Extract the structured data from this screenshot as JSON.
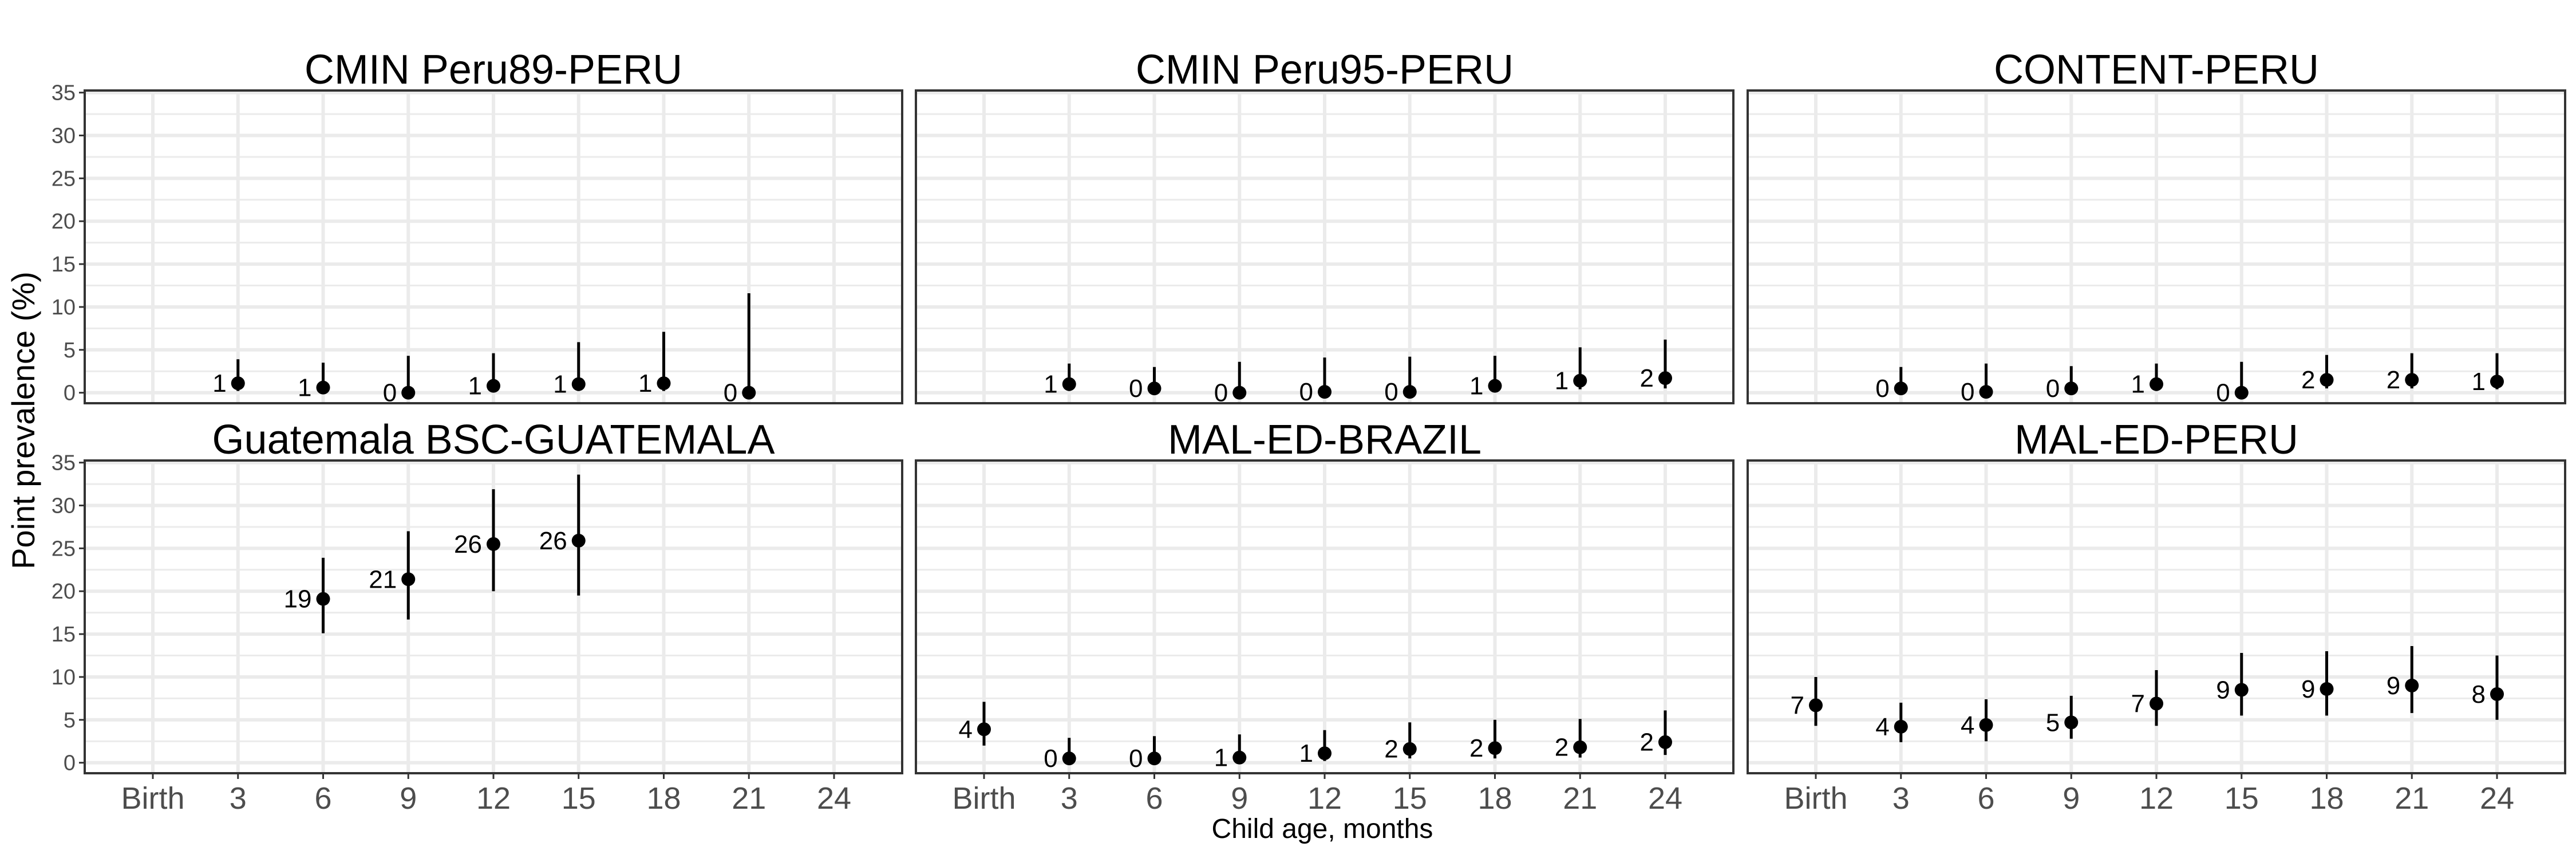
{
  "figure": {
    "ylabel": "Point prevalence (%)",
    "xlabel": "Child age, months"
  },
  "chart_data": {
    "type": "scatter",
    "facet_layout": "3 columns x 2 rows",
    "xlabel": "Child age, months",
    "ylabel": "Point prevalence (%)",
    "x_categories": [
      "Birth",
      "3",
      "6",
      "9",
      "12",
      "15",
      "18",
      "21",
      "24"
    ],
    "yticks": [
      0,
      5,
      10,
      15,
      20,
      25,
      30,
      35
    ],
    "ylim": [
      0,
      35
    ],
    "grid": true,
    "colors": {
      "point": "#000000",
      "panel_border": "#333333",
      "grid": "#ebebeb"
    },
    "panels": [
      {
        "title": "CMIN Peru89-PERU",
        "points": [
          {
            "x": "3",
            "y": 1.1,
            "lo": 0.2,
            "hi": 3.9,
            "label": "1"
          },
          {
            "x": "6",
            "y": 0.6,
            "lo": 0.0,
            "hi": 3.5,
            "label": "1"
          },
          {
            "x": "9",
            "y": 0.0,
            "lo": 0.0,
            "hi": 4.3,
            "label": "0"
          },
          {
            "x": "12",
            "y": 0.8,
            "lo": 0.1,
            "hi": 4.6,
            "label": "1"
          },
          {
            "x": "15",
            "y": 1.0,
            "lo": 0.2,
            "hi": 5.9,
            "label": "1"
          },
          {
            "x": "18",
            "y": 1.1,
            "lo": 0.2,
            "hi": 7.1,
            "label": "1"
          },
          {
            "x": "21",
            "y": 0.0,
            "lo": 0.0,
            "hi": 11.6,
            "label": "0"
          }
        ]
      },
      {
        "title": "CMIN Peru95-PERU",
        "points": [
          {
            "x": "3",
            "y": 1.0,
            "lo": 0.2,
            "hi": 3.4,
            "label": "1"
          },
          {
            "x": "6",
            "y": 0.5,
            "lo": 0.0,
            "hi": 3.0,
            "label": "0"
          },
          {
            "x": "9",
            "y": 0.0,
            "lo": 0.0,
            "hi": 3.6,
            "label": "0"
          },
          {
            "x": "12",
            "y": 0.1,
            "lo": 0.0,
            "hi": 4.1,
            "label": "0"
          },
          {
            "x": "15",
            "y": 0.1,
            "lo": 0.0,
            "hi": 4.2,
            "label": "0"
          },
          {
            "x": "18",
            "y": 0.8,
            "lo": 0.1,
            "hi": 4.3,
            "label": "1"
          },
          {
            "x": "21",
            "y": 1.4,
            "lo": 0.4,
            "hi": 5.3,
            "label": "1"
          },
          {
            "x": "24",
            "y": 1.7,
            "lo": 0.5,
            "hi": 6.2,
            "label": "2"
          }
        ]
      },
      {
        "title": "CONTENT-PERU",
        "points": [
          {
            "x": "3",
            "y": 0.5,
            "lo": 0.0,
            "hi": 3.0,
            "label": "0"
          },
          {
            "x": "6",
            "y": 0.1,
            "lo": 0.0,
            "hi": 3.4,
            "label": "0"
          },
          {
            "x": "9",
            "y": 0.5,
            "lo": 0.0,
            "hi": 3.1,
            "label": "0"
          },
          {
            "x": "12",
            "y": 1.0,
            "lo": 0.2,
            "hi": 3.4,
            "label": "1"
          },
          {
            "x": "15",
            "y": 0.0,
            "lo": 0.0,
            "hi": 3.6,
            "label": "0"
          },
          {
            "x": "18",
            "y": 1.5,
            "lo": 0.5,
            "hi": 4.4,
            "label": "2"
          },
          {
            "x": "21",
            "y": 1.5,
            "lo": 0.5,
            "hi": 4.6,
            "label": "2"
          },
          {
            "x": "24",
            "y": 1.3,
            "lo": 0.4,
            "hi": 4.6,
            "label": "1"
          }
        ]
      },
      {
        "title": "Guatemala BSC-GUATEMALA",
        "points": [
          {
            "x": "6",
            "y": 19.1,
            "lo": 15.1,
            "hi": 23.9,
            "label": "19"
          },
          {
            "x": "9",
            "y": 21.4,
            "lo": 16.7,
            "hi": 27.0,
            "label": "21"
          },
          {
            "x": "12",
            "y": 25.5,
            "lo": 20.0,
            "hi": 31.9,
            "label": "26"
          },
          {
            "x": "15",
            "y": 25.9,
            "lo": 19.5,
            "hi": 33.6,
            "label": "26"
          }
        ]
      },
      {
        "title": "MAL-ED-BRAZIL",
        "points": [
          {
            "x": "Birth",
            "y": 3.9,
            "lo": 2.0,
            "hi": 7.1,
            "label": "4"
          },
          {
            "x": "3",
            "y": 0.5,
            "lo": 0.0,
            "hi": 2.9,
            "label": "0"
          },
          {
            "x": "6",
            "y": 0.5,
            "lo": 0.0,
            "hi": 3.1,
            "label": "0"
          },
          {
            "x": "9",
            "y": 0.6,
            "lo": 0.1,
            "hi": 3.3,
            "label": "1"
          },
          {
            "x": "12",
            "y": 1.1,
            "lo": 0.2,
            "hi": 3.8,
            "label": "1"
          },
          {
            "x": "15",
            "y": 1.6,
            "lo": 0.5,
            "hi": 4.7,
            "label": "2"
          },
          {
            "x": "18",
            "y": 1.7,
            "lo": 0.5,
            "hi": 5.0,
            "label": "2"
          },
          {
            "x": "21",
            "y": 1.8,
            "lo": 0.6,
            "hi": 5.1,
            "label": "2"
          },
          {
            "x": "24",
            "y": 2.4,
            "lo": 0.9,
            "hi": 6.1,
            "label": "2"
          }
        ]
      },
      {
        "title": "MAL-ED-PERU",
        "points": [
          {
            "x": "Birth",
            "y": 6.7,
            "lo": 4.3,
            "hi": 10.0,
            "label": "7"
          },
          {
            "x": "3",
            "y": 4.2,
            "lo": 2.4,
            "hi": 7.0,
            "label": "4"
          },
          {
            "x": "6",
            "y": 4.4,
            "lo": 2.5,
            "hi": 7.4,
            "label": "4"
          },
          {
            "x": "9",
            "y": 4.7,
            "lo": 2.8,
            "hi": 7.8,
            "label": "5"
          },
          {
            "x": "12",
            "y": 6.9,
            "lo": 4.3,
            "hi": 10.8,
            "label": "7"
          },
          {
            "x": "15",
            "y": 8.5,
            "lo": 5.5,
            "hi": 12.8,
            "label": "9"
          },
          {
            "x": "18",
            "y": 8.6,
            "lo": 5.5,
            "hi": 13.0,
            "label": "9"
          },
          {
            "x": "21",
            "y": 9.0,
            "lo": 5.8,
            "hi": 13.6,
            "label": "9"
          },
          {
            "x": "24",
            "y": 8.0,
            "lo": 5.0,
            "hi": 12.5,
            "label": "8"
          }
        ]
      }
    ]
  }
}
